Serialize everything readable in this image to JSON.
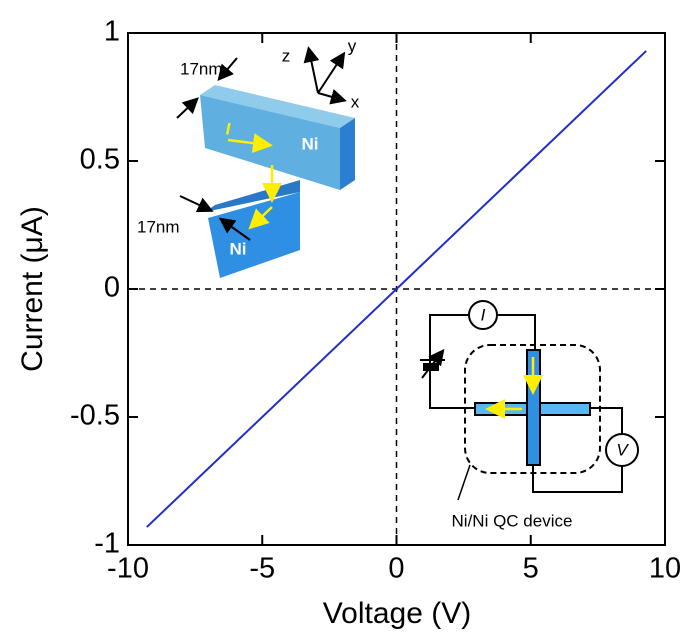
{
  "chart_data": {
    "type": "line",
    "xlabel": "Voltage (V)",
    "ylabel": "Current (μA)",
    "x": [
      -9.3,
      0,
      9.3
    ],
    "series": [
      {
        "name": "Ni/Ni QC device",
        "color": "#1f2fcc",
        "values": [
          -0.93,
          0,
          0.93
        ]
      }
    ],
    "xlim": [
      -10,
      10
    ],
    "ylim": [
      -1,
      1
    ],
    "xticks": [
      -10,
      -5,
      0,
      5,
      10
    ],
    "yticks": [
      -1,
      -0.5,
      0,
      0.5,
      1
    ],
    "reference_lines": {
      "x": [
        0
      ],
      "y": [
        0
      ]
    },
    "annotations": [
      "17nm",
      "17nm",
      "Ni",
      "Ni",
      "I",
      "z",
      "y",
      "x",
      "I",
      "V",
      "Ni/Ni QC device"
    ]
  }
}
